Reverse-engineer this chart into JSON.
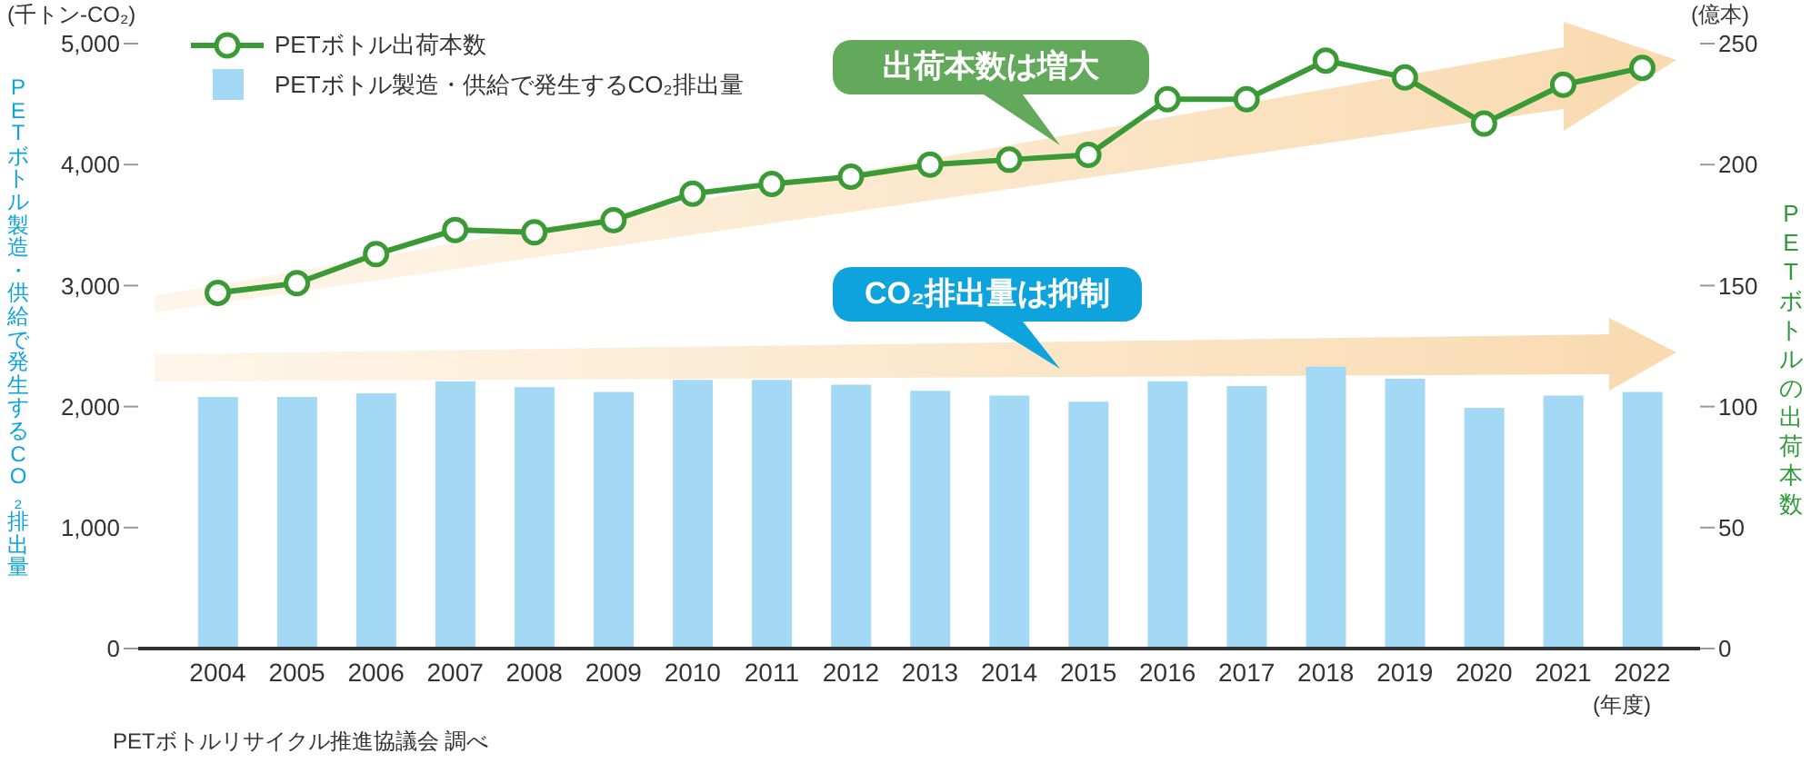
{
  "chart_data": {
    "type": "bar",
    "categories": [
      "2004",
      "2005",
      "2006",
      "2007",
      "2008",
      "2009",
      "2010",
      "2011",
      "2012",
      "2013",
      "2014",
      "2015",
      "2016",
      "2017",
      "2018",
      "2019",
      "2020",
      "2021",
      "2022"
    ],
    "series": [
      {
        "name": "PETボトル出荷本数",
        "type": "line",
        "axis": "y2",
        "color": "#3a9a35",
        "values": [
          147,
          151,
          163,
          173,
          172,
          177,
          188,
          192,
          195,
          200,
          202,
          204,
          227,
          227,
          243,
          236,
          217,
          233,
          240
        ]
      },
      {
        "name": "PETボトル製造・供給で発生するCO₂排出量",
        "color": "#a3d9f5",
        "values": [
          2080,
          2080,
          2110,
          2210,
          2160,
          2120,
          2220,
          2220,
          2180,
          2130,
          2090,
          2040,
          2210,
          2170,
          2330,
          2230,
          1990,
          2090,
          2120
        ]
      }
    ],
    "ylabel": "PETボトル製造・供給で発生するCO₂排出量",
    "y2label": "PETボトルの出荷本数",
    "ylim": [
      0,
      5000
    ],
    "yticks": [
      {
        "value": 0,
        "label": "0"
      },
      {
        "value": 1000,
        "label": "1,000"
      },
      {
        "value": 2000,
        "label": "2,000"
      },
      {
        "value": 3000,
        "label": "3,000"
      },
      {
        "value": 4000,
        "label": "4,000"
      },
      {
        "value": 5000,
        "label": "5,000"
      }
    ],
    "y2lim": [
      0,
      250
    ],
    "y2ticks": [
      0,
      50,
      100,
      150,
      200,
      250
    ],
    "marker": "circle",
    "legend": "top left",
    "grid": false,
    "annotations": [
      "出荷本数は増大",
      "CO₂排出量は抑制",
      "(千トン-CO₂)",
      "(億本)",
      "(年度)",
      "PETボトルリサイクル推進協議会 調べ"
    ]
  }
}
